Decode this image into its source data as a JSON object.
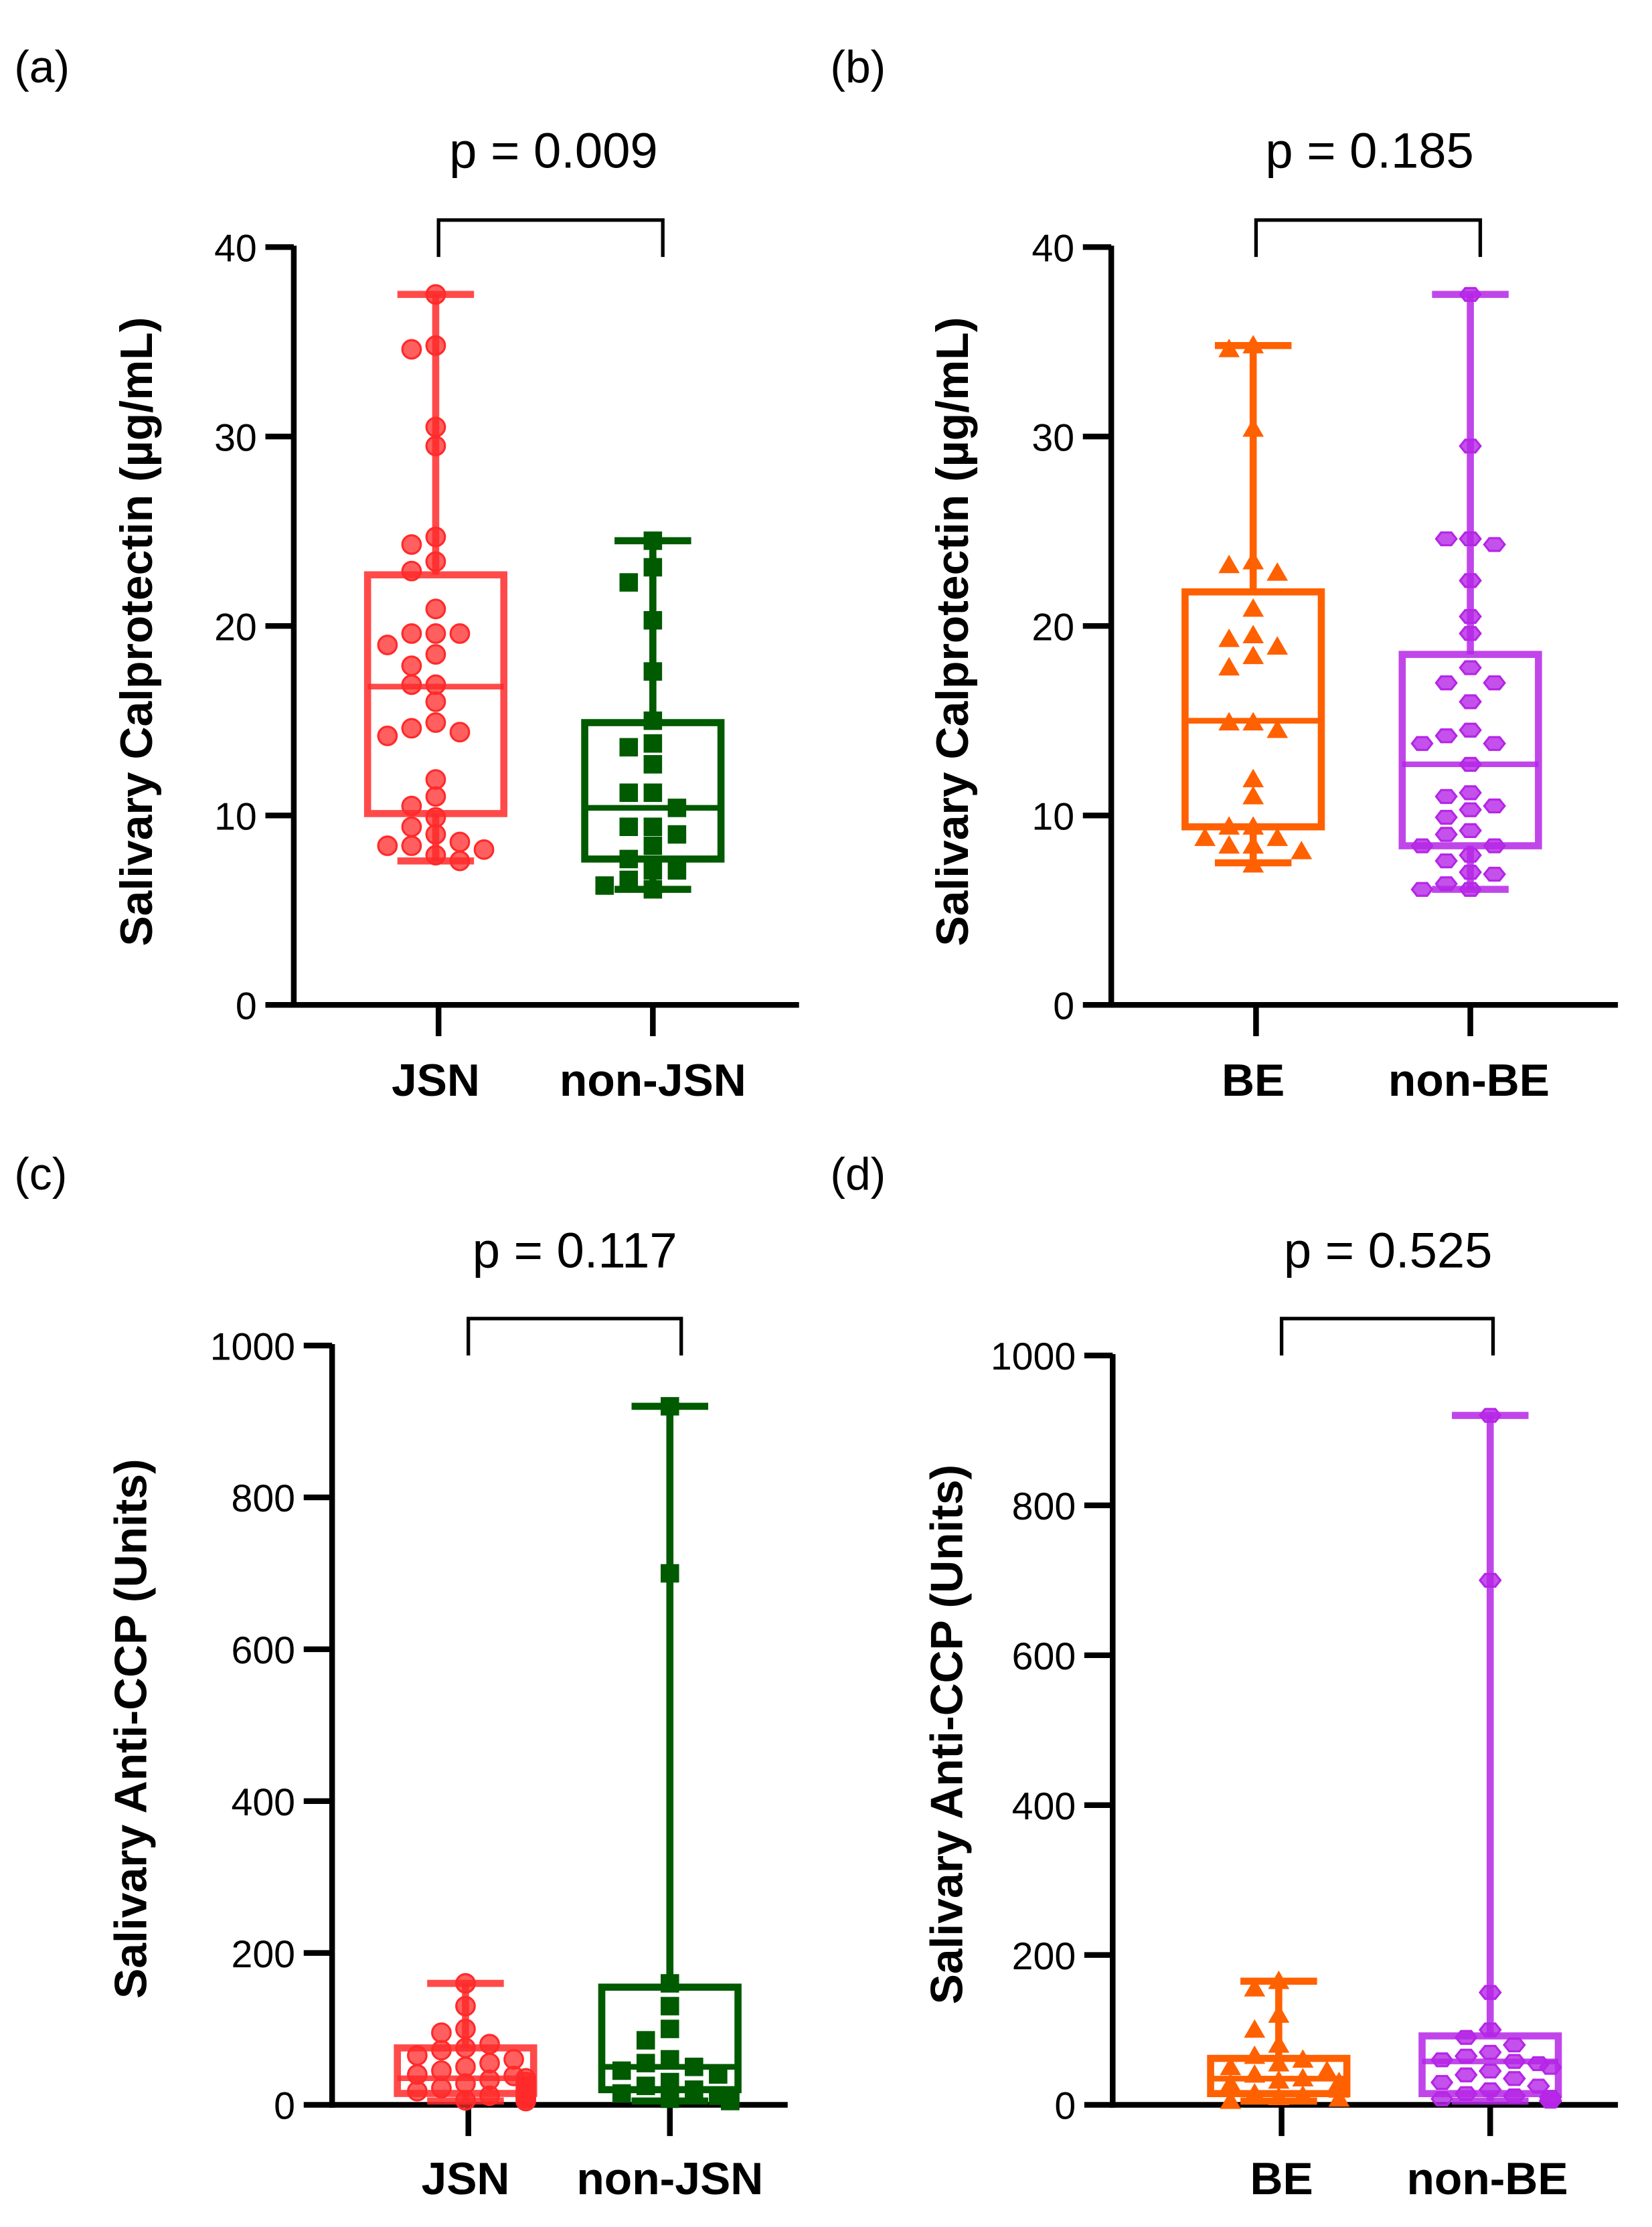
{
  "chart_data": [
    {
      "type": "box",
      "panel_label": "(a)",
      "p_label": "p = 0.009",
      "ylabel": "Salivary Calprotectin (µg/mL)",
      "ylim": [
        0,
        40
      ],
      "yticks": [
        "0",
        "10",
        "20",
        "30",
        "40"
      ],
      "ytick_values": [
        0,
        10,
        20,
        30,
        40
      ],
      "categories": [
        "JSN",
        "non-JSN"
      ],
      "series": [
        {
          "name": "JSN",
          "color": "#ff2a2a",
          "marker": "circle",
          "box": {
            "min": 7.6,
            "q1": 10.1,
            "median": 16.8,
            "q3": 22.7,
            "max": 37.5
          },
          "values": [
            37.5,
            34.8,
            34.6,
            30.5,
            29.5,
            24.7,
            24.3,
            23.4,
            22.9,
            20.9,
            19.6,
            19.6,
            19.6,
            19.0,
            18.5,
            17.9,
            16.9,
            16.9,
            16.0,
            14.9,
            14.6,
            14.4,
            14.2,
            11.9,
            11.0,
            10.5,
            9.9,
            9.4,
            9.0,
            8.6,
            8.4,
            8.4,
            8.2,
            7.9,
            7.6
          ]
        },
        {
          "name": "non-JSN",
          "color": "#005a00",
          "marker": "square",
          "box": {
            "min": 6.1,
            "q1": 7.7,
            "median": 10.4,
            "q3": 14.9,
            "max": 24.5
          },
          "values": [
            24.5,
            23.1,
            22.3,
            20.3,
            17.6,
            15.0,
            13.8,
            13.6,
            12.7,
            11.2,
            11.2,
            10.4,
            9.4,
            9.4,
            9.0,
            8.4,
            7.7,
            7.1,
            7.1,
            6.6,
            6.3,
            6.1
          ]
        }
      ]
    },
    {
      "type": "box",
      "panel_label": "(b)",
      "p_label": "p = 0.185",
      "ylabel": "Salivary Calprotectin (µg/mL)",
      "ylim": [
        0,
        40
      ],
      "yticks": [
        "0",
        "10",
        "20",
        "30",
        "40"
      ],
      "ytick_values": [
        0,
        10,
        20,
        30,
        40
      ],
      "categories": [
        "BE",
        "non-BE"
      ],
      "series": [
        {
          "name": "BE",
          "color": "#ff6000",
          "marker": "triangle",
          "box": {
            "min": 7.5,
            "q1": 9.4,
            "median": 15.0,
            "q3": 21.8,
            "max": 34.8
          },
          "values": [
            34.8,
            34.6,
            30.4,
            23.4,
            23.2,
            22.8,
            20.9,
            19.5,
            19.3,
            18.9,
            18.4,
            17.8,
            14.9,
            14.9,
            14.5,
            11.9,
            11.0,
            9.4,
            9.4,
            8.8,
            8.8,
            8.4,
            8.4,
            8.1,
            7.4
          ]
        },
        {
          "name": "non-BE",
          "color": "#b526e6",
          "marker": "hexagon",
          "box": {
            "min": 6.1,
            "q1": 8.4,
            "median": 12.7,
            "q3": 18.5,
            "max": 37.5
          },
          "values": [
            37.5,
            29.5,
            24.6,
            24.6,
            24.3,
            22.4,
            20.5,
            19.6,
            17.8,
            17.0,
            17.0,
            16.0,
            14.5,
            14.2,
            13.8,
            13.8,
            12.7,
            11.2,
            11.0,
            10.5,
            10.3,
            9.9,
            9.2,
            9.0,
            8.4,
            8.4,
            7.9,
            7.6,
            7.0,
            6.9,
            6.4,
            6.1,
            6.1
          ]
        }
      ]
    },
    {
      "type": "box",
      "panel_label": "(c)",
      "p_label": "p = 0.117",
      "ylabel": "Salivary Anti-CCP (Units)",
      "ylim": [
        0,
        1000
      ],
      "yticks": [
        "0",
        "200",
        "400",
        "600",
        "800",
        "1000"
      ],
      "ytick_values": [
        0,
        200,
        400,
        600,
        800,
        1000
      ],
      "categories": [
        "JSN",
        "non-JSN"
      ],
      "series": [
        {
          "name": "JSN",
          "color": "#ff2a2a",
          "marker": "circle",
          "box": {
            "min": 5,
            "q1": 15,
            "median": 35,
            "q3": 75,
            "max": 160
          },
          "values": [
            160,
            130,
            100,
            95,
            80,
            75,
            72,
            65,
            60,
            55,
            50,
            45,
            40,
            38,
            35,
            33,
            30,
            28,
            25,
            22,
            20,
            18,
            15,
            12,
            10,
            8,
            6,
            5
          ]
        },
        {
          "name": "non-JSN",
          "color": "#005a00",
          "marker": "square",
          "box": {
            "min": 5,
            "q1": 20,
            "median": 50,
            "q3": 155,
            "max": 920
          },
          "values": [
            920,
            700,
            160,
            130,
            100,
            85,
            60,
            55,
            50,
            45,
            40,
            30,
            25,
            20,
            15,
            12,
            10,
            8,
            6,
            5
          ]
        }
      ]
    },
    {
      "type": "box",
      "panel_label": "(d)",
      "p_label": "p = 0.525",
      "ylabel": "Salivary Anti-CCP (Units)",
      "ylim": [
        0,
        1000
      ],
      "yticks": [
        "0",
        "200",
        "400",
        "600",
        "800",
        "1000"
      ],
      "ytick_values": [
        0,
        200,
        400,
        600,
        800,
        1000
      ],
      "categories": [
        "BE",
        "non-BE"
      ],
      "series": [
        {
          "name": "BE",
          "color": "#ff6000",
          "marker": "triangle",
          "box": {
            "min": 5,
            "q1": 15,
            "median": 35,
            "q3": 62,
            "max": 165
          },
          "values": [
            165,
            155,
            120,
            100,
            80,
            65,
            60,
            55,
            50,
            45,
            40,
            35,
            32,
            30,
            28,
            25,
            20,
            15,
            12,
            10,
            8,
            5
          ]
        },
        {
          "name": "non-BE",
          "color": "#b526e6",
          "marker": "hexagon",
          "box": {
            "min": 5,
            "q1": 15,
            "median": 58,
            "q3": 92,
            "max": 920
          },
          "values": [
            920,
            700,
            150,
            100,
            90,
            80,
            70,
            65,
            60,
            58,
            55,
            50,
            45,
            40,
            35,
            30,
            25,
            20,
            15,
            12,
            10,
            8,
            6,
            5
          ]
        }
      ]
    }
  ]
}
